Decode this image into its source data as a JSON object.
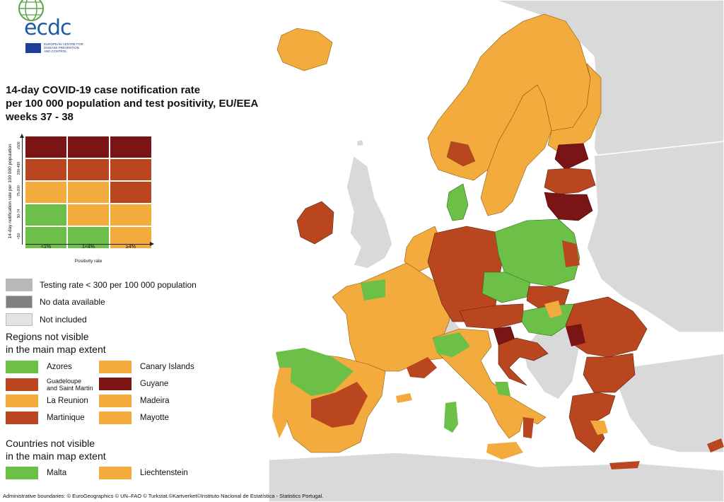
{
  "logo": {
    "text": "ecdc",
    "subtitle": [
      "EUROPEAN CENTRE FOR",
      "DISEASE PREVENTION",
      "AND CONTROL"
    ]
  },
  "title": {
    "lines": [
      "14-day COVID-19 case notification rate",
      "per 100 000 population and test positivity, EU/EEA",
      "weeks 37 - 38"
    ]
  },
  "colors": {
    "green": "#6cbf47",
    "orange": "#f2ab3c",
    "red": "#b9461e",
    "darkred": "#7b1414",
    "grey_testing": "#b8b8b8",
    "grey_nodata": "#808080",
    "grey_notincluded": "#e3e3e3",
    "sea": "#ffffff"
  },
  "matrix": {
    "ylabel": "14-day notification rate per 100 000 population",
    "xlabel": "Positivity rate",
    "rows": [
      "≥500",
      "200-499",
      "75-200",
      "50-74",
      "<50"
    ],
    "cols": [
      "<1%",
      "1<4%",
      "≥4%"
    ],
    "cells": [
      [
        "darkred",
        "darkred",
        "darkred"
      ],
      [
        "red",
        "red",
        "red"
      ],
      [
        "orange",
        "orange",
        "red"
      ],
      [
        "green",
        "orange",
        "orange"
      ],
      [
        "green",
        "green",
        "orange"
      ]
    ]
  },
  "legend": [
    {
      "label": "Testing rate < 300 per 100 000 population",
      "color": "grey_testing"
    },
    {
      "label": "No data available",
      "color": "grey_nodata"
    },
    {
      "label": "Not included",
      "color": "grey_notincluded"
    }
  ],
  "regions": {
    "title": [
      "Regions not visible",
      "in the main map extent"
    ],
    "items": [
      {
        "label": "Azores",
        "color": "green"
      },
      {
        "label": "Canary Islands",
        "color": "orange"
      },
      {
        "label": "Guadeloupe\nand Saint Martin",
        "color": "red",
        "small": true
      },
      {
        "label": "Guyane",
        "color": "darkred"
      },
      {
        "label": "La Reunion",
        "color": "orange"
      },
      {
        "label": "Madeira",
        "color": "orange"
      },
      {
        "label": "Martinique",
        "color": "red"
      },
      {
        "label": "Mayotte",
        "color": "orange"
      }
    ]
  },
  "countries": {
    "title": [
      "Countries not visible",
      "in the main map extent"
    ],
    "items": [
      {
        "label": "Malta",
        "color": "green"
      },
      {
        "label": "Liechtenstein",
        "color": "orange"
      }
    ]
  },
  "footer": "Administrative boundaries: © EuroGeographics © UN–FAO © Turkstat.©Kartverket©Instituto Nacional de Estatística - Statistics Portugal."
}
